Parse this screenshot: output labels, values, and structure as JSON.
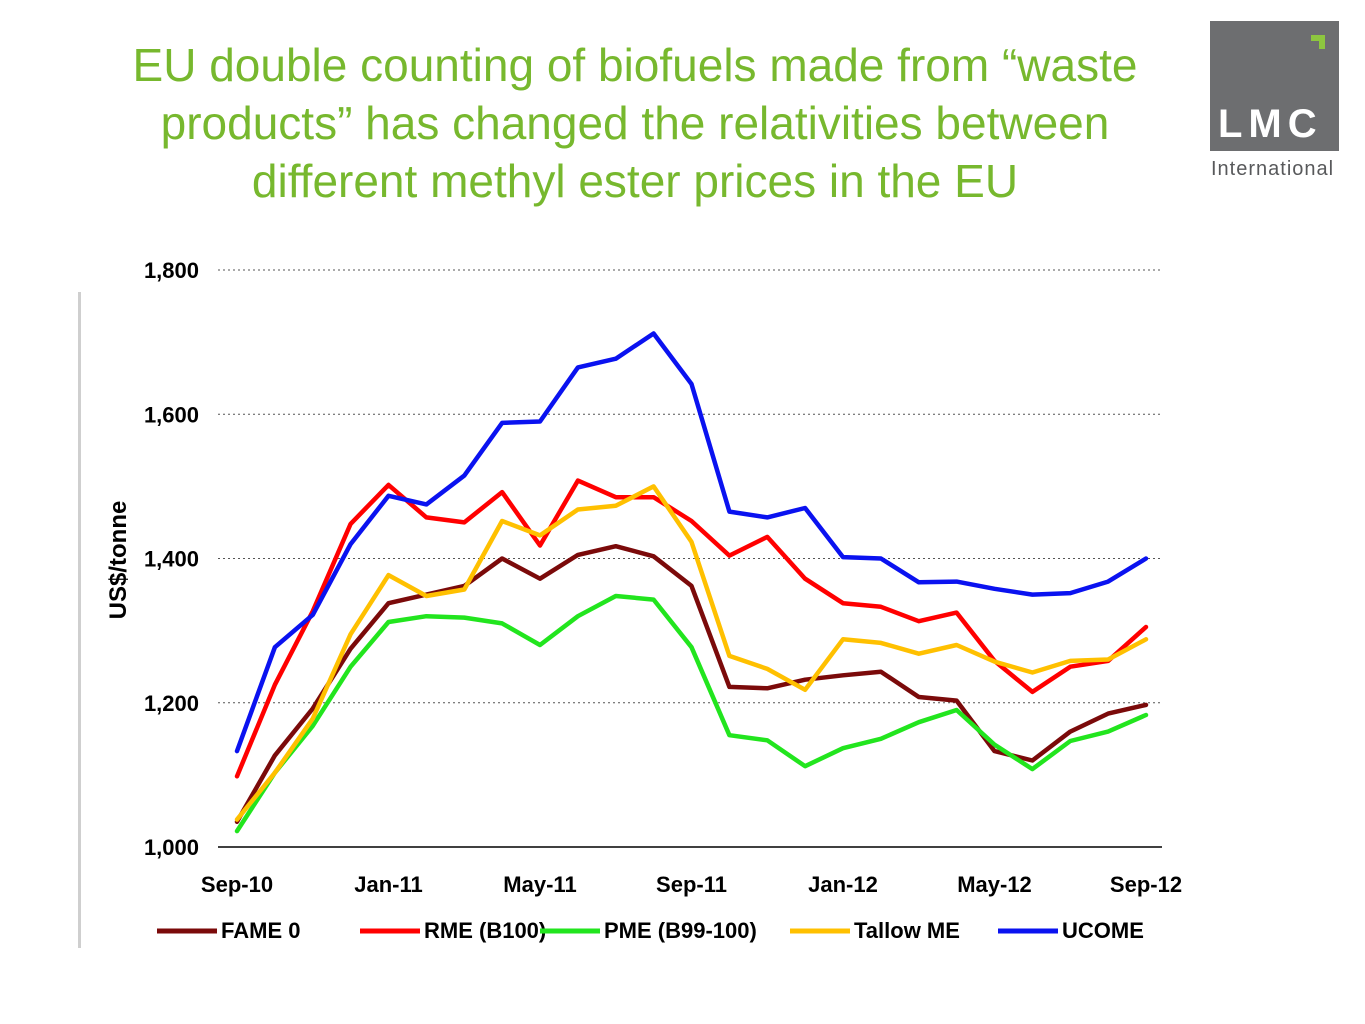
{
  "slide": {
    "title_lines": [
      "EU double counting of biofuels made from “waste",
      "products” has changed the relativities between",
      "different methyl ester prices in the EU"
    ],
    "logo": {
      "mark": "LMC",
      "subtitle": "International"
    }
  },
  "chart_data": {
    "type": "line",
    "ylabel": "US$/tonne",
    "ylim": [
      1000,
      1800
    ],
    "yticks": [
      1000,
      1200,
      1400,
      1600,
      1800
    ],
    "ytick_labels": [
      "1,000",
      "1,200",
      "1,400",
      "1,600",
      "1,800"
    ],
    "x": [
      "Sep-10",
      "Oct-10",
      "Nov-10",
      "Dec-10",
      "Jan-11",
      "Feb-11",
      "Mar-11",
      "Apr-11",
      "May-11",
      "Jun-11",
      "Jul-11",
      "Aug-11",
      "Sep-11",
      "Oct-11",
      "Nov-11",
      "Dec-11",
      "Jan-12",
      "Feb-12",
      "Mar-12",
      "Apr-12",
      "May-12",
      "Jun-12",
      "Jul-12",
      "Aug-12",
      "Sep-12"
    ],
    "xtick_labels": [
      "Sep-10",
      "Jan-11",
      "May-11",
      "Sep-11",
      "Jan-12",
      "May-12",
      "Sep-12"
    ],
    "grid": "horizontal-dotted",
    "legend": "bottom",
    "series": [
      {
        "name": "FAME 0",
        "color": "#7b0a0a",
        "values": [
          1035,
          1127,
          1192,
          1275,
          1338,
          1350,
          1362,
          1400,
          1372,
          1405,
          1417,
          1403,
          1362,
          1222,
          1220,
          1232,
          1238,
          1243,
          1208,
          1203,
          1133,
          1120,
          1160,
          1185,
          1197
        ]
      },
      {
        "name": "RME (B100)",
        "color": "#ff0000",
        "values": [
          1098,
          1225,
          1327,
          1448,
          1502,
          1457,
          1450,
          1492,
          1418,
          1508,
          1485,
          1485,
          1452,
          1404,
          1430,
          1372,
          1338,
          1333,
          1313,
          1325,
          1258,
          1215,
          1250,
          1258,
          1305
        ]
      },
      {
        "name": "PME (B99-100)",
        "color": "#22e51e",
        "values": [
          1022,
          1103,
          1168,
          1250,
          1312,
          1320,
          1318,
          1310,
          1280,
          1320,
          1348,
          1343,
          1277,
          1155,
          1148,
          1112,
          1137,
          1150,
          1173,
          1190,
          1142,
          1108,
          1147,
          1160,
          1183
        ]
      },
      {
        "name": "Tallow ME",
        "color": "#ffc000",
        "values": [
          1038,
          1103,
          1178,
          1295,
          1377,
          1348,
          1357,
          1452,
          1432,
          1468,
          1473,
          1500,
          1423,
          1265,
          1247,
          1218,
          1288,
          1283,
          1268,
          1280,
          1257,
          1242,
          1258,
          1260,
          1288
        ]
      },
      {
        "name": "UCOME",
        "color": "#0a12f0",
        "values": [
          1133,
          1277,
          1322,
          1420,
          1487,
          1475,
          1515,
          1588,
          1590,
          1665,
          1677,
          1712,
          1642,
          1465,
          1457,
          1470,
          1402,
          1400,
          1367,
          1368,
          1358,
          1350,
          1352,
          1368,
          1400
        ]
      }
    ]
  }
}
